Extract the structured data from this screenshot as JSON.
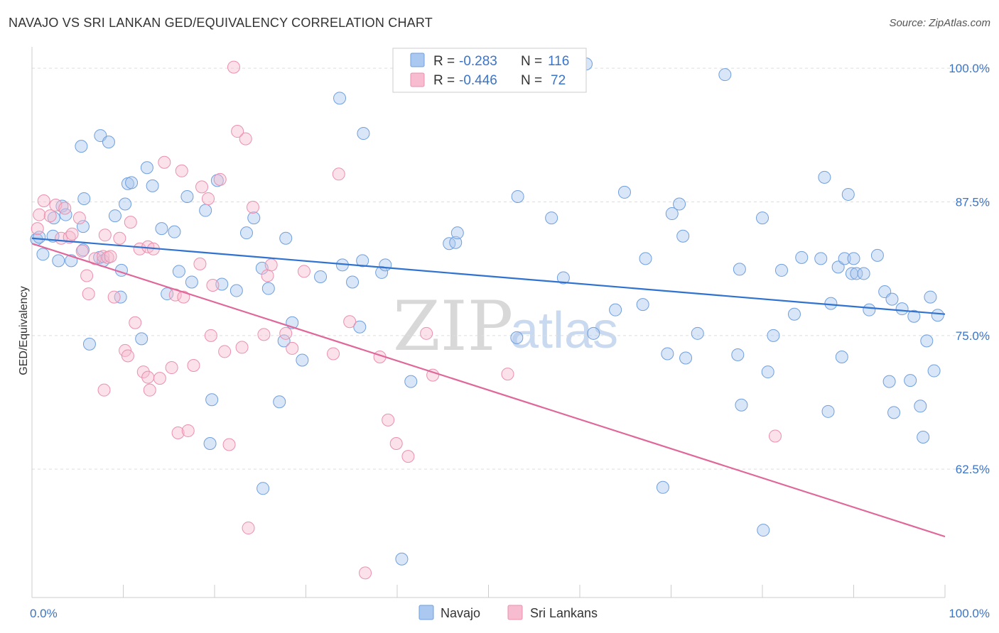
{
  "title": "NAVAJO VS SRI LANKAN GED/EQUIVALENCY CORRELATION CHART",
  "source": "Source: ZipAtlas.com",
  "watermark": {
    "zip": "ZIP",
    "atlas": "atlas"
  },
  "colors": {
    "navajo_fill": "#aac8f0",
    "navajo_stroke": "#6f9fde",
    "navajo_line": "#2f72cf",
    "srilankan_fill": "#f7bccf",
    "srilankan_stroke": "#ec8fae",
    "srilankan_line": "#e0679a",
    "grid": "#dddddd",
    "tick_label": "#3a74c8"
  },
  "legend": {
    "row1": {
      "r_label": "R =",
      "r_value": "-0.283",
      "n_label": "N =",
      "n_value": "116"
    },
    "row2": {
      "r_label": "R =",
      "r_value": "-0.446",
      "n_label": "N =",
      "n_value": "72"
    }
  },
  "chart_data": {
    "type": "scatter",
    "title": "NAVAJO VS SRI LANKAN GED/EQUIVALENCY CORRELATION CHART",
    "xlabel": "",
    "ylabel": "GED/Equivalency",
    "xlim": [
      0,
      100
    ],
    "ylim": [
      50.5,
      102
    ],
    "x_tick_labels": [
      "0.0%",
      "100.0%"
    ],
    "y_ticks": [
      62.5,
      75.0,
      87.5,
      100.0
    ],
    "y_tick_labels": [
      "62.5%",
      "75.0%",
      "87.5%",
      "100.0%"
    ],
    "grid": true,
    "legend_position": "top-center",
    "series": [
      {
        "name": "Navajo",
        "R": -0.283,
        "N": 116,
        "trend": {
          "x": [
            0,
            100
          ],
          "y": [
            84.1,
            77.0
          ]
        },
        "points": [
          [
            0.5,
            84.0
          ],
          [
            0.8,
            84.2
          ],
          [
            1.2,
            82.6
          ],
          [
            2.3,
            84.3
          ],
          [
            2.4,
            86.0
          ],
          [
            2.9,
            82.0
          ],
          [
            3.3,
            87.1
          ],
          [
            3.7,
            86.3
          ],
          [
            4.3,
            82.0
          ],
          [
            5.4,
            92.7
          ],
          [
            5.6,
            83.0
          ],
          [
            5.6,
            85.2
          ],
          [
            5.7,
            87.8
          ],
          [
            6.3,
            74.2
          ],
          [
            7.4,
            82.3
          ],
          [
            7.8,
            82.0
          ],
          [
            7.5,
            93.7
          ],
          [
            8.4,
            93.1
          ],
          [
            9.1,
            86.2
          ],
          [
            9.7,
            78.6
          ],
          [
            9.8,
            81.1
          ],
          [
            10.2,
            87.3
          ],
          [
            10.5,
            89.2
          ],
          [
            10.9,
            89.3
          ],
          [
            12.0,
            74.7
          ],
          [
            12.6,
            90.7
          ],
          [
            13.2,
            89.0
          ],
          [
            14.2,
            85.0
          ],
          [
            14.8,
            78.9
          ],
          [
            15.6,
            84.7
          ],
          [
            16.1,
            81.0
          ],
          [
            17.0,
            88.0
          ],
          [
            17.5,
            80.0
          ],
          [
            19.0,
            86.7
          ],
          [
            19.5,
            64.9
          ],
          [
            19.7,
            69.0
          ],
          [
            20.3,
            89.5
          ],
          [
            20.8,
            79.8
          ],
          [
            22.4,
            79.2
          ],
          [
            23.5,
            84.6
          ],
          [
            24.3,
            86.0
          ],
          [
            25.2,
            81.3
          ],
          [
            25.3,
            60.7
          ],
          [
            25.9,
            79.4
          ],
          [
            27.1,
            68.8
          ],
          [
            27.6,
            74.5
          ],
          [
            27.8,
            84.1
          ],
          [
            28.5,
            76.2
          ],
          [
            29.6,
            72.7
          ],
          [
            31.6,
            80.5
          ],
          [
            33.7,
            97.2
          ],
          [
            34.0,
            81.6
          ],
          [
            35.1,
            80.0
          ],
          [
            35.9,
            75.8
          ],
          [
            36.2,
            82.0
          ],
          [
            36.3,
            93.9
          ],
          [
            38.3,
            80.9
          ],
          [
            38.7,
            81.6
          ],
          [
            40.5,
            54.1
          ],
          [
            41.5,
            70.7
          ],
          [
            45.7,
            83.6
          ],
          [
            46.4,
            83.7
          ],
          [
            46.6,
            84.6
          ],
          [
            52.2,
            100.3
          ],
          [
            53.1,
            74.8
          ],
          [
            53.2,
            88.0
          ],
          [
            56.9,
            86.0
          ],
          [
            58.2,
            80.4
          ],
          [
            58.9,
            99.8
          ],
          [
            60.7,
            100.4
          ],
          [
            61.5,
            75.2
          ],
          [
            63.9,
            77.4
          ],
          [
            64.9,
            88.4
          ],
          [
            66.9,
            77.9
          ],
          [
            67.2,
            82.2
          ],
          [
            69.1,
            60.8
          ],
          [
            69.6,
            73.3
          ],
          [
            70.1,
            86.4
          ],
          [
            70.9,
            87.3
          ],
          [
            71.3,
            84.3
          ],
          [
            71.6,
            72.9
          ],
          [
            72.9,
            75.2
          ],
          [
            75.9,
            99.4
          ],
          [
            77.5,
            81.2
          ],
          [
            77.3,
            73.2
          ],
          [
            77.7,
            68.5
          ],
          [
            80.1,
            56.8
          ],
          [
            80.0,
            86.0
          ],
          [
            80.6,
            71.6
          ],
          [
            81.2,
            75.0
          ],
          [
            82.1,
            81.1
          ],
          [
            83.5,
            77.0
          ],
          [
            84.3,
            82.3
          ],
          [
            86.4,
            82.2
          ],
          [
            86.8,
            89.8
          ],
          [
            87.2,
            67.9
          ],
          [
            87.5,
            78.0
          ],
          [
            88.3,
            81.4
          ],
          [
            88.7,
            73.0
          ],
          [
            89.0,
            82.2
          ],
          [
            89.4,
            88.2
          ],
          [
            89.8,
            80.8
          ],
          [
            90.0,
            82.2
          ],
          [
            90.3,
            80.8
          ],
          [
            91.1,
            80.8
          ],
          [
            91.7,
            77.4
          ],
          [
            92.6,
            82.5
          ],
          [
            93.4,
            79.1
          ],
          [
            93.9,
            70.7
          ],
          [
            94.4,
            67.8
          ],
          [
            94.2,
            78.4
          ],
          [
            95.3,
            77.5
          ],
          [
            96.2,
            70.8
          ],
          [
            96.6,
            76.8
          ],
          [
            97.3,
            68.4
          ],
          [
            97.6,
            65.5
          ],
          [
            98.0,
            74.5
          ],
          [
            98.4,
            78.6
          ],
          [
            98.8,
            71.7
          ],
          [
            99.2,
            76.9
          ]
        ]
      },
      {
        "name": "Sri Lankans",
        "R": -0.446,
        "N": 72,
        "trend": {
          "x": [
            0,
            100
          ],
          "y": [
            83.6,
            56.2
          ]
        },
        "points": [
          [
            0.6,
            85.0
          ],
          [
            0.8,
            86.3
          ],
          [
            1.3,
            87.6
          ],
          [
            2.0,
            86.2
          ],
          [
            2.6,
            87.2
          ],
          [
            3.2,
            84.1
          ],
          [
            3.6,
            86.9
          ],
          [
            4.1,
            84.2
          ],
          [
            4.4,
            84.5
          ],
          [
            5.2,
            86.0
          ],
          [
            5.5,
            82.9
          ],
          [
            6.0,
            80.6
          ],
          [
            6.2,
            78.9
          ],
          [
            6.9,
            82.2
          ],
          [
            7.8,
            82.4
          ],
          [
            7.9,
            69.9
          ],
          [
            8.3,
            82.3
          ],
          [
            8.6,
            82.4
          ],
          [
            9.0,
            78.6
          ],
          [
            9.6,
            84.1
          ],
          [
            10.2,
            73.6
          ],
          [
            10.5,
            73.1
          ],
          [
            10.8,
            85.6
          ],
          [
            11.3,
            76.2
          ],
          [
            11.8,
            83.1
          ],
          [
            12.2,
            71.6
          ],
          [
            12.7,
            83.3
          ],
          [
            12.7,
            71.1
          ],
          [
            12.9,
            69.9
          ],
          [
            13.3,
            83.1
          ],
          [
            14.0,
            71.0
          ],
          [
            14.5,
            91.2
          ],
          [
            15.3,
            72.0
          ],
          [
            15.7,
            78.8
          ],
          [
            16.0,
            65.9
          ],
          [
            16.4,
            90.4
          ],
          [
            16.6,
            78.6
          ],
          [
            17.1,
            66.1
          ],
          [
            17.7,
            72.2
          ],
          [
            18.4,
            81.7
          ],
          [
            19.3,
            87.8
          ],
          [
            19.6,
            75.0
          ],
          [
            19.8,
            79.7
          ],
          [
            20.6,
            89.6
          ],
          [
            21.1,
            73.5
          ],
          [
            21.6,
            64.8
          ],
          [
            22.1,
            100.1
          ],
          [
            23.0,
            73.9
          ],
          [
            23.4,
            93.4
          ],
          [
            23.7,
            57.0
          ],
          [
            24.2,
            87.0
          ],
          [
            25.4,
            75.1
          ],
          [
            25.8,
            80.6
          ],
          [
            26.2,
            81.6
          ],
          [
            27.8,
            75.2
          ],
          [
            28.5,
            73.8
          ],
          [
            29.8,
            81.0
          ],
          [
            33.0,
            73.3
          ],
          [
            33.6,
            90.1
          ],
          [
            34.8,
            76.3
          ],
          [
            36.5,
            52.8
          ],
          [
            38.1,
            73.0
          ],
          [
            39.0,
            67.1
          ],
          [
            39.9,
            64.9
          ],
          [
            41.2,
            63.7
          ],
          [
            43.2,
            75.2
          ],
          [
            43.9,
            71.3
          ],
          [
            52.1,
            71.4
          ],
          [
            81.4,
            65.6
          ],
          [
            22.5,
            94.1
          ],
          [
            18.6,
            88.9
          ],
          [
            8.0,
            84.4
          ]
        ]
      }
    ]
  },
  "bottom_legend": [
    {
      "label": "Navajo"
    },
    {
      "label": "Sri Lankans"
    }
  ]
}
